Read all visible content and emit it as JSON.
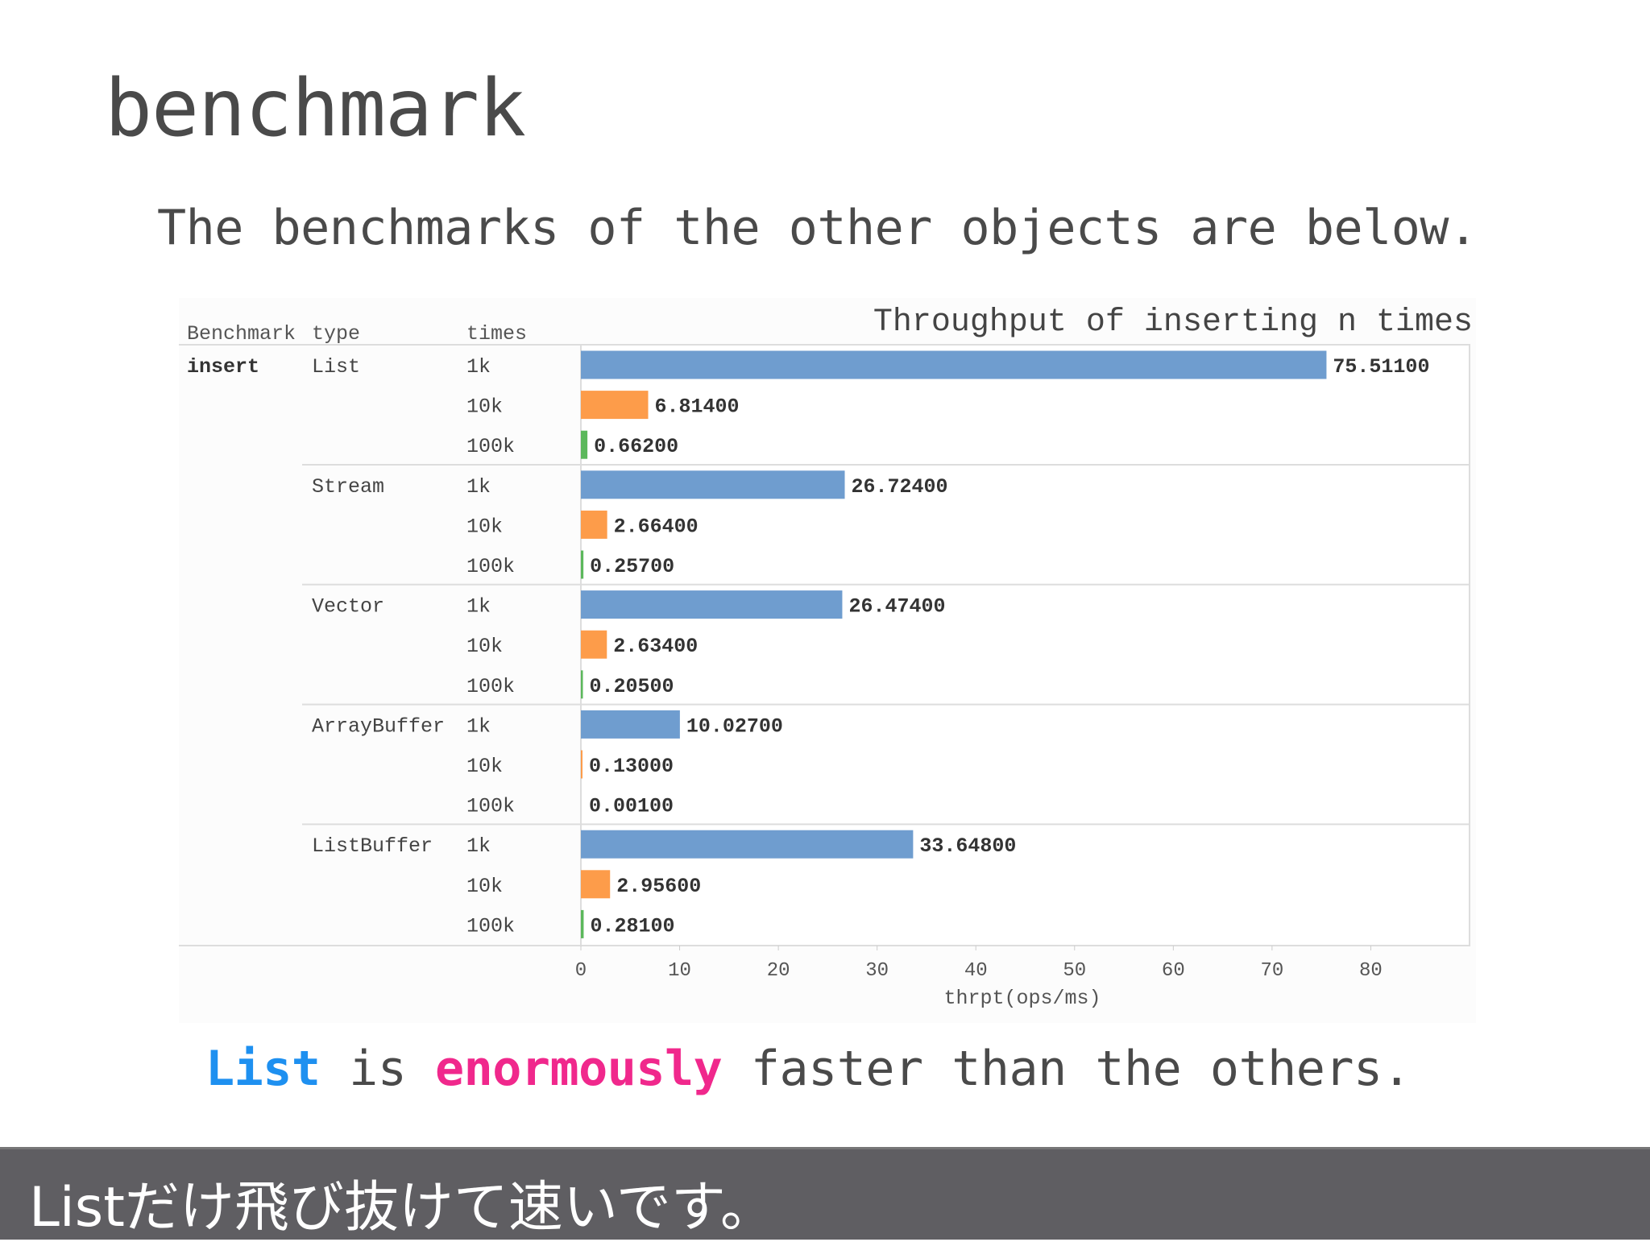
{
  "slide": {
    "title": "benchmark",
    "subtitle": "The benchmarks of the other objects are below.",
    "caption": {
      "part1": "List",
      "part2": " is ",
      "part3": "enormously",
      "part4": " faster than the others."
    },
    "subtitle_band": "Listだけ飛び抜けて速いです。"
  },
  "colors": {
    "1k": "#6f9dcf",
    "10k": "#fd9c4a",
    "100k": "#5cb85c",
    "caption_list": "#1e90f0",
    "caption_enormously": "#f0288c",
    "band": "#5f5e62"
  },
  "chart_data": {
    "type": "bar",
    "orientation": "horizontal",
    "title": "Throughput of inserting n times",
    "xlabel": "thrpt(ops/ms)",
    "columns": [
      "Benchmark",
      "type",
      "times"
    ],
    "benchmark": "insert",
    "xlim": [
      0,
      90
    ],
    "xticks": [
      0,
      10,
      20,
      30,
      40,
      50,
      60,
      70,
      80
    ],
    "grid": false,
    "groups": [
      {
        "type": "List",
        "rows": [
          {
            "times": "1k",
            "value": 75.511,
            "label": "75.51100"
          },
          {
            "times": "10k",
            "value": 6.814,
            "label": "6.81400"
          },
          {
            "times": "100k",
            "value": 0.662,
            "label": "0.66200"
          }
        ]
      },
      {
        "type": "Stream",
        "rows": [
          {
            "times": "1k",
            "value": 26.724,
            "label": "26.72400"
          },
          {
            "times": "10k",
            "value": 2.664,
            "label": "2.66400"
          },
          {
            "times": "100k",
            "value": 0.257,
            "label": "0.25700"
          }
        ]
      },
      {
        "type": "Vector",
        "rows": [
          {
            "times": "1k",
            "value": 26.474,
            "label": "26.47400"
          },
          {
            "times": "10k",
            "value": 2.634,
            "label": "2.63400"
          },
          {
            "times": "100k",
            "value": 0.205,
            "label": "0.20500"
          }
        ]
      },
      {
        "type": "ArrayBuffer",
        "rows": [
          {
            "times": "1k",
            "value": 10.027,
            "label": "10.02700"
          },
          {
            "times": "10k",
            "value": 0.13,
            "label": "0.13000"
          },
          {
            "times": "100k",
            "value": 0.001,
            "label": "0.00100"
          }
        ]
      },
      {
        "type": "ListBuffer",
        "rows": [
          {
            "times": "1k",
            "value": 33.648,
            "label": "33.64800"
          },
          {
            "times": "10k",
            "value": 2.956,
            "label": "2.95600"
          },
          {
            "times": "100k",
            "value": 0.281,
            "label": "0.28100"
          }
        ]
      }
    ]
  }
}
